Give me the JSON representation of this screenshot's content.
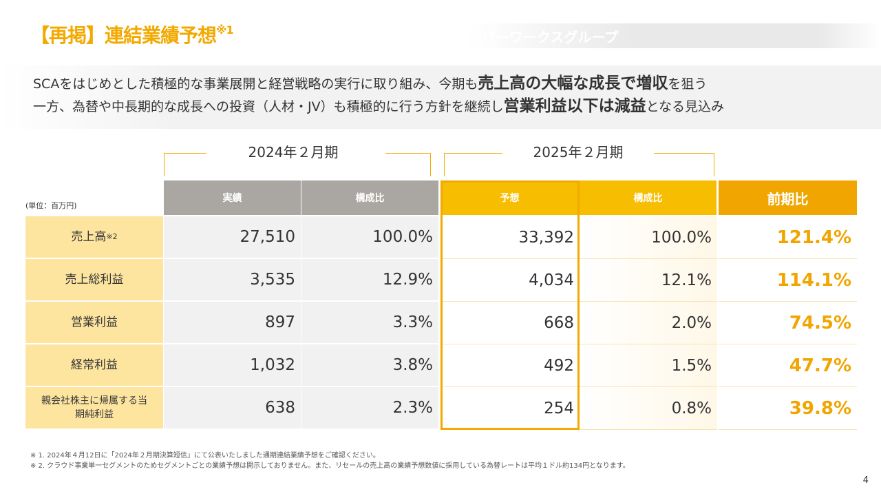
{
  "title": "【再掲】連結業績予想",
  "title_note": "※1",
  "brand": "パーワークスグループ",
  "lead": {
    "l1a": "SCAをはじめとした積極的な事業展開と経営戦略の実行に取り組み、今期も",
    "l1b": "売上高の大幅な成長で増収",
    "l1c": "を狙う",
    "l2a": "一方、為替や中長期的な成長への投資（人材・JV）も積極的に行う方針を継続し",
    "l2b": "営業利益以下は減益",
    "l2c": "となる見込み"
  },
  "periods": [
    "2024年２月期",
    "2025年２月期"
  ],
  "unit": "(単位：百万円)",
  "headers": [
    "実績",
    "構成比",
    "予想",
    "構成比",
    "前期比"
  ],
  "colors": {
    "accent": "#f2a900",
    "header_gray": "#aaa6a2",
    "header_yellow": "#f7bd00",
    "header_orange": "#f0a500",
    "label_bg": "#fde5a0"
  },
  "rows": [
    {
      "label": "売上高",
      "note": "※2",
      "v": [
        "27,510",
        "100.0%",
        "33,392",
        "100.0%",
        "121.4%"
      ]
    },
    {
      "label": "売上総利益",
      "note": "",
      "v": [
        "3,535",
        "12.9%",
        "4,034",
        "12.1%",
        "114.1%"
      ]
    },
    {
      "label": "営業利益",
      "note": "",
      "v": [
        "897",
        "3.3%",
        "668",
        "2.0%",
        "74.5%"
      ]
    },
    {
      "label": "経常利益",
      "note": "",
      "v": [
        "1,032",
        "3.8%",
        "492",
        "1.5%",
        "47.7%"
      ]
    },
    {
      "label": "親会社株主に帰属する当期純利益",
      "note": "",
      "v": [
        "638",
        "2.3%",
        "254",
        "0.8%",
        "39.8%"
      ]
    }
  ],
  "footnotes": [
    "※ 1. 2024年４月12日に「2024年２月期決算短信」にて公表いたしました通期連結業績予想をご確認ください。",
    "※ 2. クラウド事業単一セグメントのためセグメントごとの業績予想は開示しておりません。また、リセールの売上高の業績予想数値に採用している為替レートは平均１ドル約134円となります。"
  ],
  "page": "4"
}
